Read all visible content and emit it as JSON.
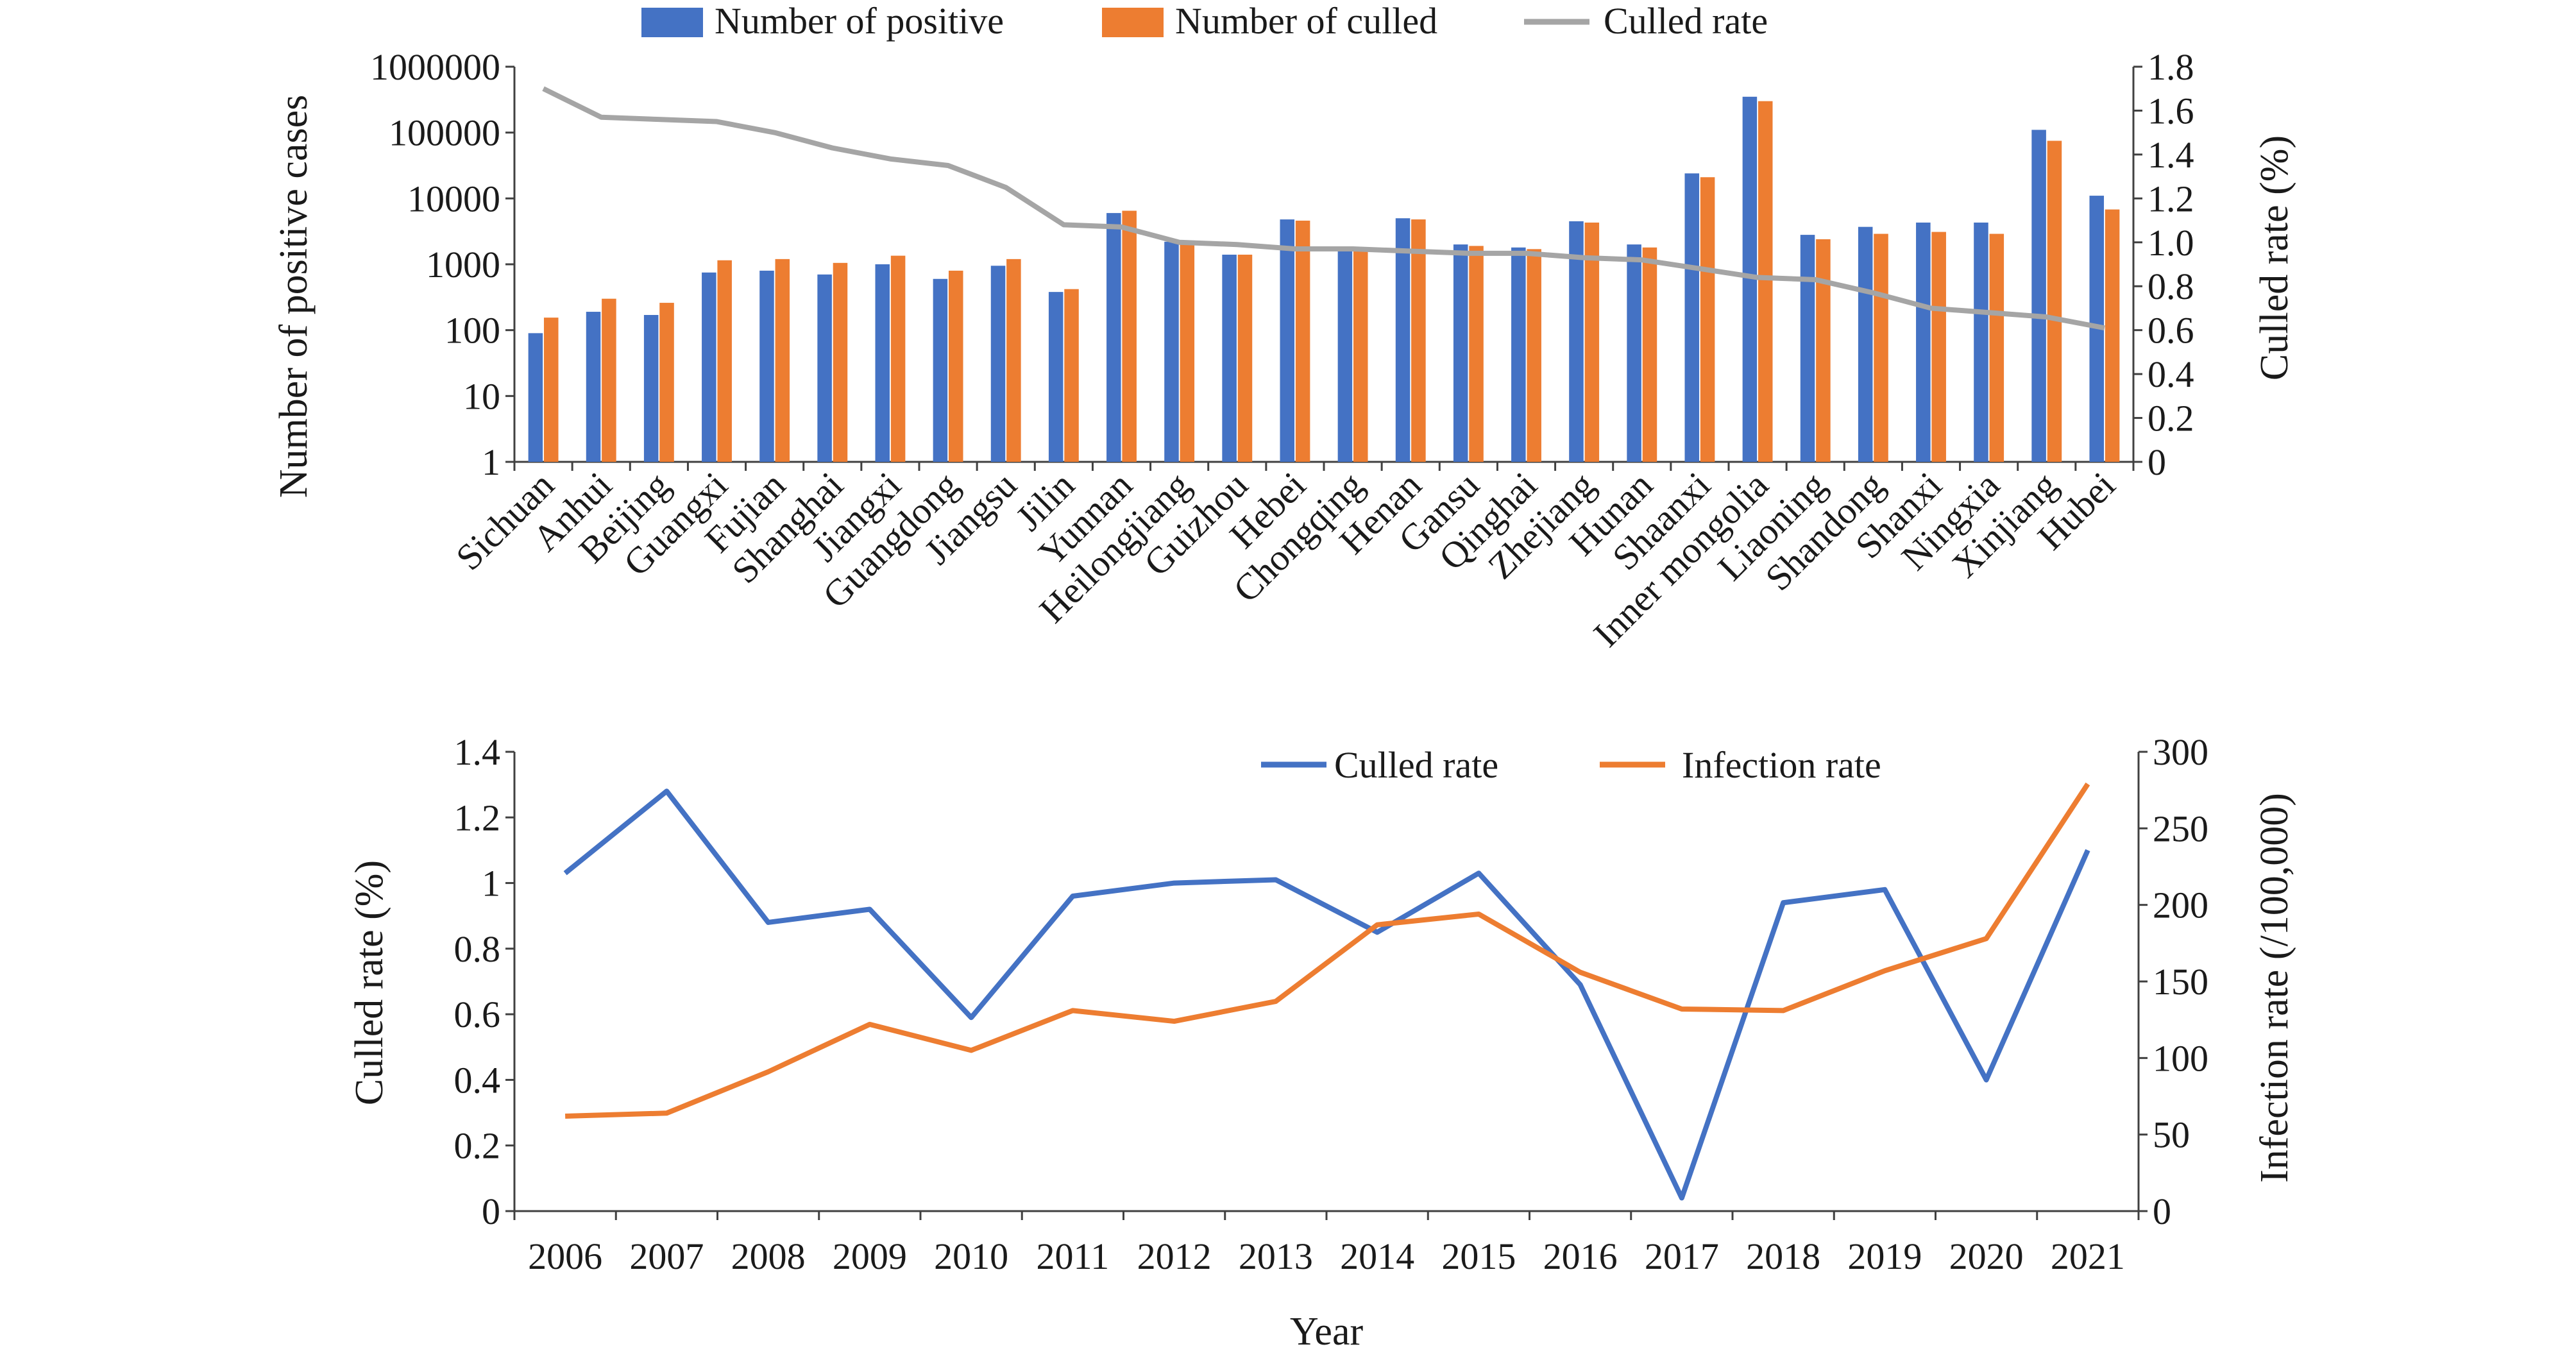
{
  "chart_data": [
    {
      "type": "bar",
      "title": "",
      "categories": [
        "Sichuan",
        "Anhui",
        "Beijing",
        "Guangxi",
        "Fujian",
        "Shanghai",
        "Jiangxi",
        "Guangdong",
        "Jiangsu",
        "Jilin",
        "Yunnan",
        "Heilongjiang",
        "Guizhou",
        "Hebei",
        "Chongqing",
        "Henan",
        "Gansu",
        "Qinghai",
        "Zhejiang",
        "Hunan",
        "Shaanxi",
        "Inner mongolia",
        "Liaoning",
        "Shandong",
        "Shanxi",
        "Ningxia",
        "Xinjiang",
        "Hubei"
      ],
      "ylabel": "Number of positive cases",
      "y2label": "Culled rate (%)",
      "yscale": "log",
      "ylim": [
        1,
        1000000
      ],
      "yticks": [
        "1",
        "10",
        "100",
        "1000",
        "10000",
        "100000",
        "1000000"
      ],
      "y2lim": [
        0,
        1.8
      ],
      "y2ticks": [
        "0",
        "0.2",
        "0.4",
        "0.6",
        "0.8",
        "1.0",
        "1.2",
        "1.4",
        "1.6",
        "1.8"
      ],
      "legend_position": "top",
      "grid": false,
      "series": [
        {
          "name": "Number of positive",
          "kind": "bar",
          "axis": "left",
          "color": "#4472C4",
          "values": [
            90,
            190,
            170,
            750,
            800,
            700,
            1000,
            600,
            950,
            380,
            6000,
            2200,
            1400,
            4800,
            1600,
            5000,
            2000,
            1800,
            4500,
            2000,
            24000,
            350000,
            2800,
            3700,
            4300,
            4300,
            110000,
            11000
          ]
        },
        {
          "name": "Number of culled",
          "kind": "bar",
          "axis": "left",
          "color": "#ED7D31",
          "values": [
            155,
            300,
            260,
            1150,
            1200,
            1050,
            1350,
            800,
            1200,
            420,
            6500,
            2200,
            1400,
            4600,
            1600,
            4800,
            1900,
            1700,
            4300,
            1800,
            21000,
            300000,
            2400,
            2900,
            3100,
            2900,
            75000,
            6800
          ]
        },
        {
          "name": "Culled rate",
          "kind": "line",
          "axis": "right",
          "color": "#A5A5A5",
          "values": [
            1.7,
            1.57,
            1.56,
            1.55,
            1.5,
            1.43,
            1.38,
            1.35,
            1.25,
            1.08,
            1.07,
            1.0,
            0.99,
            0.97,
            0.97,
            0.96,
            0.95,
            0.95,
            0.93,
            0.92,
            0.88,
            0.84,
            0.83,
            0.77,
            0.7,
            0.68,
            0.66,
            0.61
          ]
        }
      ]
    },
    {
      "type": "line",
      "title": "",
      "categories": [
        "2006",
        "2007",
        "2008",
        "2009",
        "2010",
        "2011",
        "2012",
        "2013",
        "2014",
        "2015",
        "2016",
        "2017",
        "2018",
        "2019",
        "2020",
        "2021"
      ],
      "xlabel": "Year",
      "ylabel": "Culled rate (%)",
      "y2label": "Infection rate (/100,000)",
      "ylim": [
        0,
        1.4
      ],
      "yticks": [
        "0",
        "0.2",
        "0.4",
        "0.6",
        "0.8",
        "1",
        "1.2",
        "1.4"
      ],
      "y2lim": [
        0,
        300
      ],
      "y2ticks": [
        "0",
        "50",
        "100",
        "150",
        "200",
        "250",
        "300"
      ],
      "legend_position": "top-right",
      "grid": false,
      "series": [
        {
          "name": "Culled rate",
          "axis": "left",
          "color": "#4472C4",
          "values": [
            1.03,
            1.28,
            0.88,
            0.92,
            0.59,
            0.96,
            1.0,
            1.01,
            0.85,
            1.03,
            0.69,
            0.04,
            0.94,
            0.98,
            0.4,
            1.1
          ]
        },
        {
          "name": "Infection rate",
          "axis": "right",
          "color": "#ED7D31",
          "values": [
            62,
            64,
            91,
            122,
            105,
            131,
            124,
            137,
            187,
            194,
            156,
            132,
            131,
            157,
            178,
            279
          ]
        }
      ]
    }
  ]
}
